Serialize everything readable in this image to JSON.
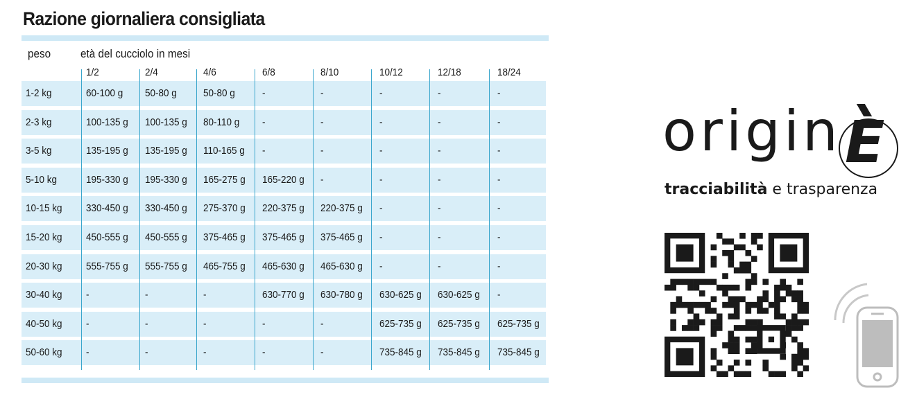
{
  "title": "Razione giornaliera consigliata",
  "header": {
    "weight_label": "peso",
    "age_label": "età del cucciolo in mesi"
  },
  "columns": [
    "1/2",
    "2/4",
    "4/6",
    "6/8",
    "8/10",
    "10/12",
    "12/18",
    "18/24"
  ],
  "rows": [
    {
      "weight": "1-2 kg",
      "values": [
        "60-100 g",
        "50-80 g",
        "50-80 g",
        "-",
        "-",
        "-",
        "-",
        "-"
      ]
    },
    {
      "weight": "2-3 kg",
      "values": [
        "100-135 g",
        "100-135 g",
        "80-110 g",
        "-",
        "-",
        "-",
        "-",
        "-"
      ]
    },
    {
      "weight": "3-5 kg",
      "values": [
        "135-195 g",
        "135-195 g",
        "110-165 g",
        "-",
        "-",
        "-",
        "-",
        "-"
      ]
    },
    {
      "weight": "5-10 kg",
      "values": [
        "195-330 g",
        "195-330 g",
        "165-275 g",
        "165-220 g",
        "-",
        "-",
        "-",
        "-"
      ]
    },
    {
      "weight": "10-15 kg",
      "values": [
        "330-450 g",
        "330-450 g",
        "275-370 g",
        "220-375 g",
        "220-375 g",
        "-",
        "-",
        "-"
      ]
    },
    {
      "weight": "15-20 kg",
      "values": [
        "450-555 g",
        "450-555 g",
        "375-465 g",
        "375-465 g",
        "375-465 g",
        "-",
        "-",
        "-"
      ]
    },
    {
      "weight": "20-30 kg",
      "values": [
        "555-755 g",
        "555-755 g",
        "465-755 g",
        "465-630 g",
        "465-630 g",
        "-",
        "-",
        "-"
      ]
    },
    {
      "weight": "30-40 kg",
      "values": [
        "-",
        "-",
        "-",
        "630-770 g",
        "630-780 g",
        "630-625 g",
        "630-625 g",
        "-"
      ]
    },
    {
      "weight": "40-50 kg",
      "values": [
        "-",
        "-",
        "-",
        "-",
        "-",
        "625-735 g",
        "625-735 g",
        "625-735 g"
      ]
    },
    {
      "weight": "50-60 kg",
      "values": [
        "-",
        "-",
        "-",
        "-",
        "-",
        "735-845 g",
        "735-845 g",
        "735-845 g"
      ]
    }
  ],
  "brand": {
    "word": "origin",
    "letter": "E",
    "tagline_bold": "tracciabilità",
    "tagline_rest": " e trasparenza"
  },
  "icons": {
    "qr": "qr-code-icon",
    "phone": "smartphone-scan-icon"
  },
  "colors": {
    "row_bg": "#d9eef8",
    "bar": "#cfe9f6",
    "rule": "#3aa6cc"
  }
}
